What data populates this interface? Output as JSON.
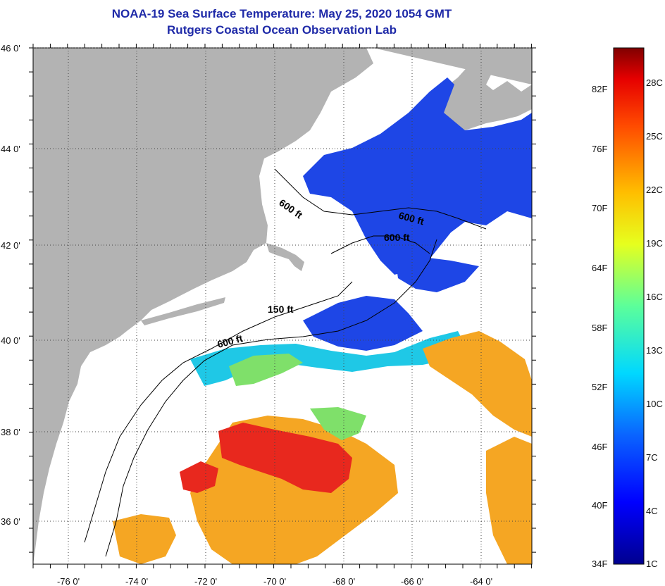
{
  "title": "NOAA-19 Sea Surface Temperature:  May 25, 2020 1054 GMT",
  "subtitle": "Rutgers Coastal Ocean Observation Lab",
  "map": {
    "lon_ticks": [
      "-76 0'",
      "-74 0'",
      "-72 0'",
      "-70 0'",
      "-68 0'",
      "-66 0'",
      "-64 0'"
    ],
    "lat_ticks": [
      "46 0'",
      "44 0'",
      "42 0'",
      "40 0'",
      "38 0'",
      "36 0'"
    ],
    "contour_labels": [
      "600 ft",
      "600 ft",
      "600 ft",
      "150 ft",
      "600 ft"
    ],
    "colors": {
      "land": "#b3b3b3",
      "cloud": "#ffffff",
      "cold": "#1e46e6",
      "cool": "#1fc8e6",
      "mild": "#7fe06a",
      "warm": "#f5a623",
      "hot": "#e8281e"
    }
  },
  "colorbar": {
    "f_labels": [
      "82F",
      "76F",
      "70F",
      "64F",
      "58F",
      "52F",
      "46F",
      "40F",
      "34F"
    ],
    "c_labels": [
      "28C",
      "25C",
      "22C",
      "19C",
      "16C",
      "13C",
      "10C",
      "7C",
      "4C",
      "1C"
    ]
  }
}
